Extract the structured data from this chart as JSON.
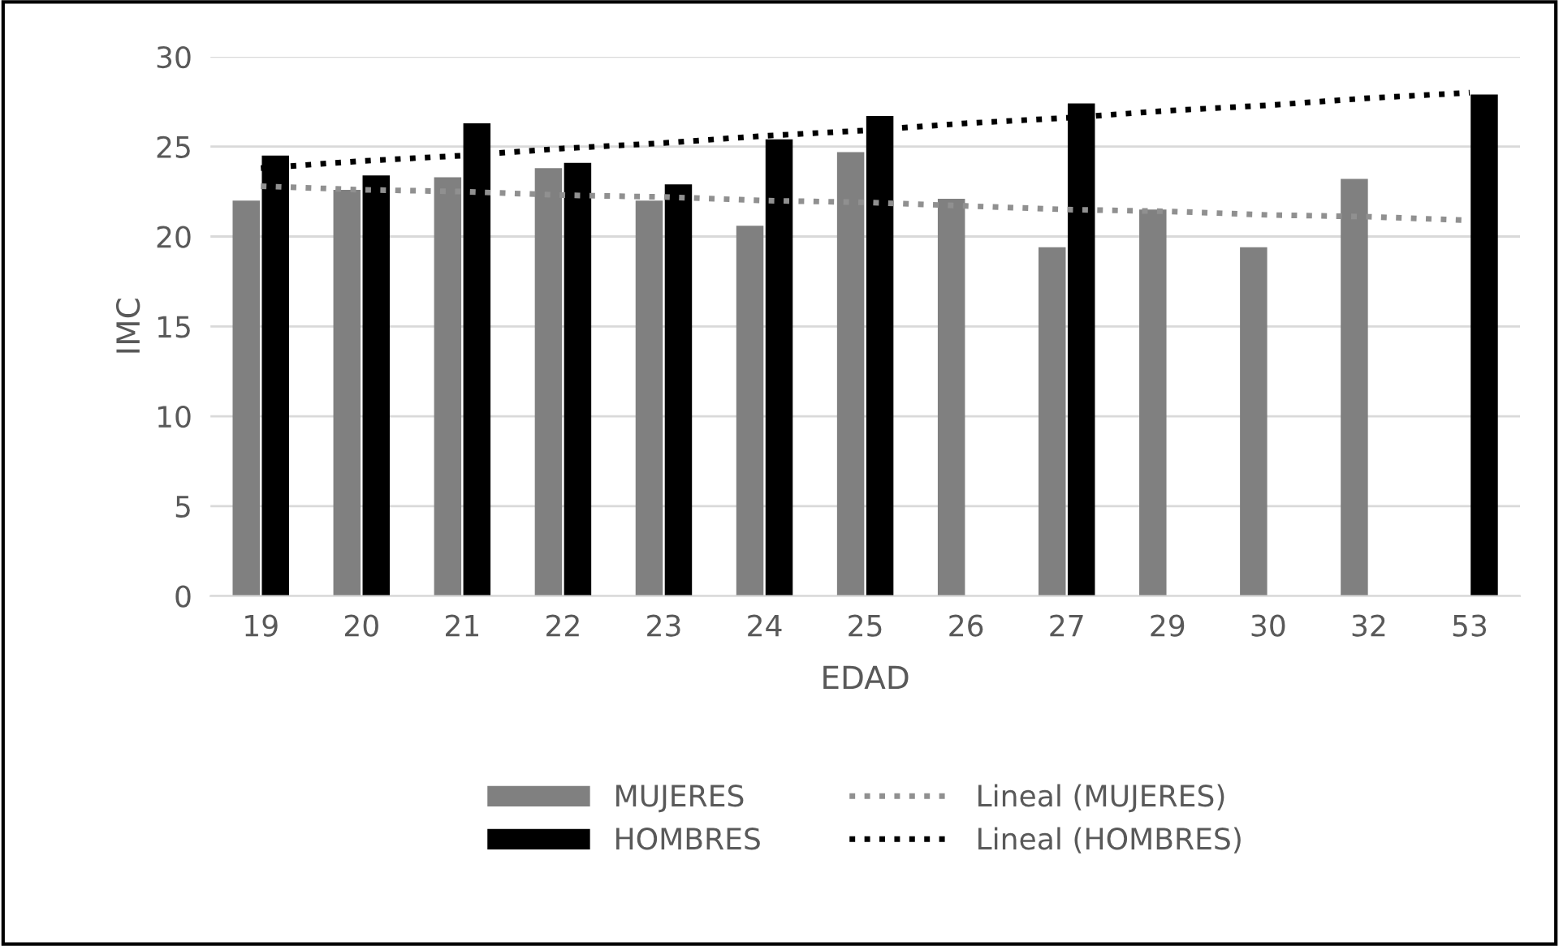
{
  "chart_data": {
    "type": "bar",
    "xlabel": "EDAD",
    "ylabel": "IMC",
    "categories": [
      "19",
      "20",
      "21",
      "22",
      "23",
      "24",
      "25",
      "26",
      "27",
      "29",
      "30",
      "32",
      "53"
    ],
    "series": [
      {
        "name": "MUJERES",
        "color": "#808080",
        "values": [
          22.0,
          22.6,
          23.3,
          23.8,
          22.0,
          20.6,
          24.7,
          22.1,
          19.4,
          21.5,
          19.4,
          23.2,
          null
        ]
      },
      {
        "name": "HOMBRES",
        "color": "#000000",
        "values": [
          24.5,
          23.4,
          26.3,
          24.1,
          22.9,
          25.4,
          26.7,
          null,
          27.4,
          null,
          null,
          null,
          27.9
        ]
      },
      {
        "name": "Lineal (MUJERES)",
        "type": "line",
        "line_style": "dotted",
        "color": "#909090",
        "values": [
          22.8,
          22.6,
          22.5,
          22.3,
          22.2,
          22.0,
          21.9,
          21.7,
          21.5,
          21.4,
          21.2,
          21.1,
          20.9
        ]
      },
      {
        "name": "Lineal (HOMBRES)",
        "type": "line",
        "line_style": "dotted",
        "color": "#000000",
        "values": [
          23.8,
          24.2,
          24.5,
          24.9,
          25.2,
          25.6,
          25.9,
          26.3,
          26.6,
          27.0,
          27.3,
          27.7,
          28.0
        ]
      }
    ],
    "ylim": [
      0,
      30
    ],
    "yticks": [
      0,
      5,
      10,
      15,
      20,
      25,
      30
    ],
    "grid": "y",
    "legend": "bottom"
  }
}
